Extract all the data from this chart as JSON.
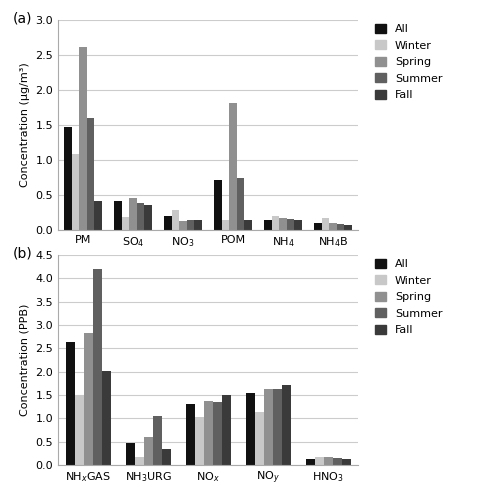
{
  "panel_a": {
    "categories": [
      "PM",
      "SO$_4$",
      "NO$_3$",
      "POM",
      "NH$_4$",
      "NH$_4$B"
    ],
    "series": {
      "All": [
        1.47,
        0.42,
        0.2,
        0.72,
        0.15,
        0.1
      ],
      "Winter": [
        1.08,
        0.19,
        0.28,
        0.15,
        0.2,
        0.17
      ],
      "Spring": [
        2.62,
        0.46,
        0.13,
        1.81,
        0.17,
        0.1
      ],
      "Summer": [
        1.6,
        0.38,
        0.14,
        0.75,
        0.16,
        0.09
      ],
      "Fall": [
        0.42,
        0.36,
        0.15,
        0.15,
        0.15,
        0.07
      ]
    },
    "ylabel": "Concentration (µg/m³)",
    "ylim": [
      0,
      3.0
    ],
    "yticks": [
      0.0,
      0.5,
      1.0,
      1.5,
      2.0,
      2.5,
      3.0
    ],
    "panel_label": "(a)"
  },
  "panel_b": {
    "categories": [
      "NH$_x$GAS",
      "NH$_3$URG",
      "NO$_x$",
      "NO$_y$",
      "HNO$_3$"
    ],
    "series": {
      "All": [
        2.63,
        0.47,
        1.3,
        1.55,
        0.13
      ],
      "Winter": [
        1.5,
        0.17,
        1.02,
        1.13,
        0.17
      ],
      "Spring": [
        2.83,
        0.6,
        1.38,
        1.63,
        0.17
      ],
      "Summer": [
        4.2,
        1.05,
        1.35,
        1.63,
        0.15
      ],
      "Fall": [
        2.02,
        0.34,
        1.51,
        1.72,
        0.12
      ]
    },
    "ylabel": "Concentration (PPB)",
    "ylim": [
      0,
      4.5
    ],
    "yticks": [
      0.0,
      0.5,
      1.0,
      1.5,
      2.0,
      2.5,
      3.0,
      3.5,
      4.0,
      4.5
    ],
    "panel_label": "(b)"
  },
  "series_order": [
    "All",
    "Winter",
    "Spring",
    "Summer",
    "Fall"
  ],
  "colors": {
    "All": "#111111",
    "Winter": "#c8c8c8",
    "Spring": "#909090",
    "Summer": "#606060",
    "Fall": "#3a3a3a"
  },
  "figsize": [
    4.84,
    5.0
  ],
  "dpi": 100
}
